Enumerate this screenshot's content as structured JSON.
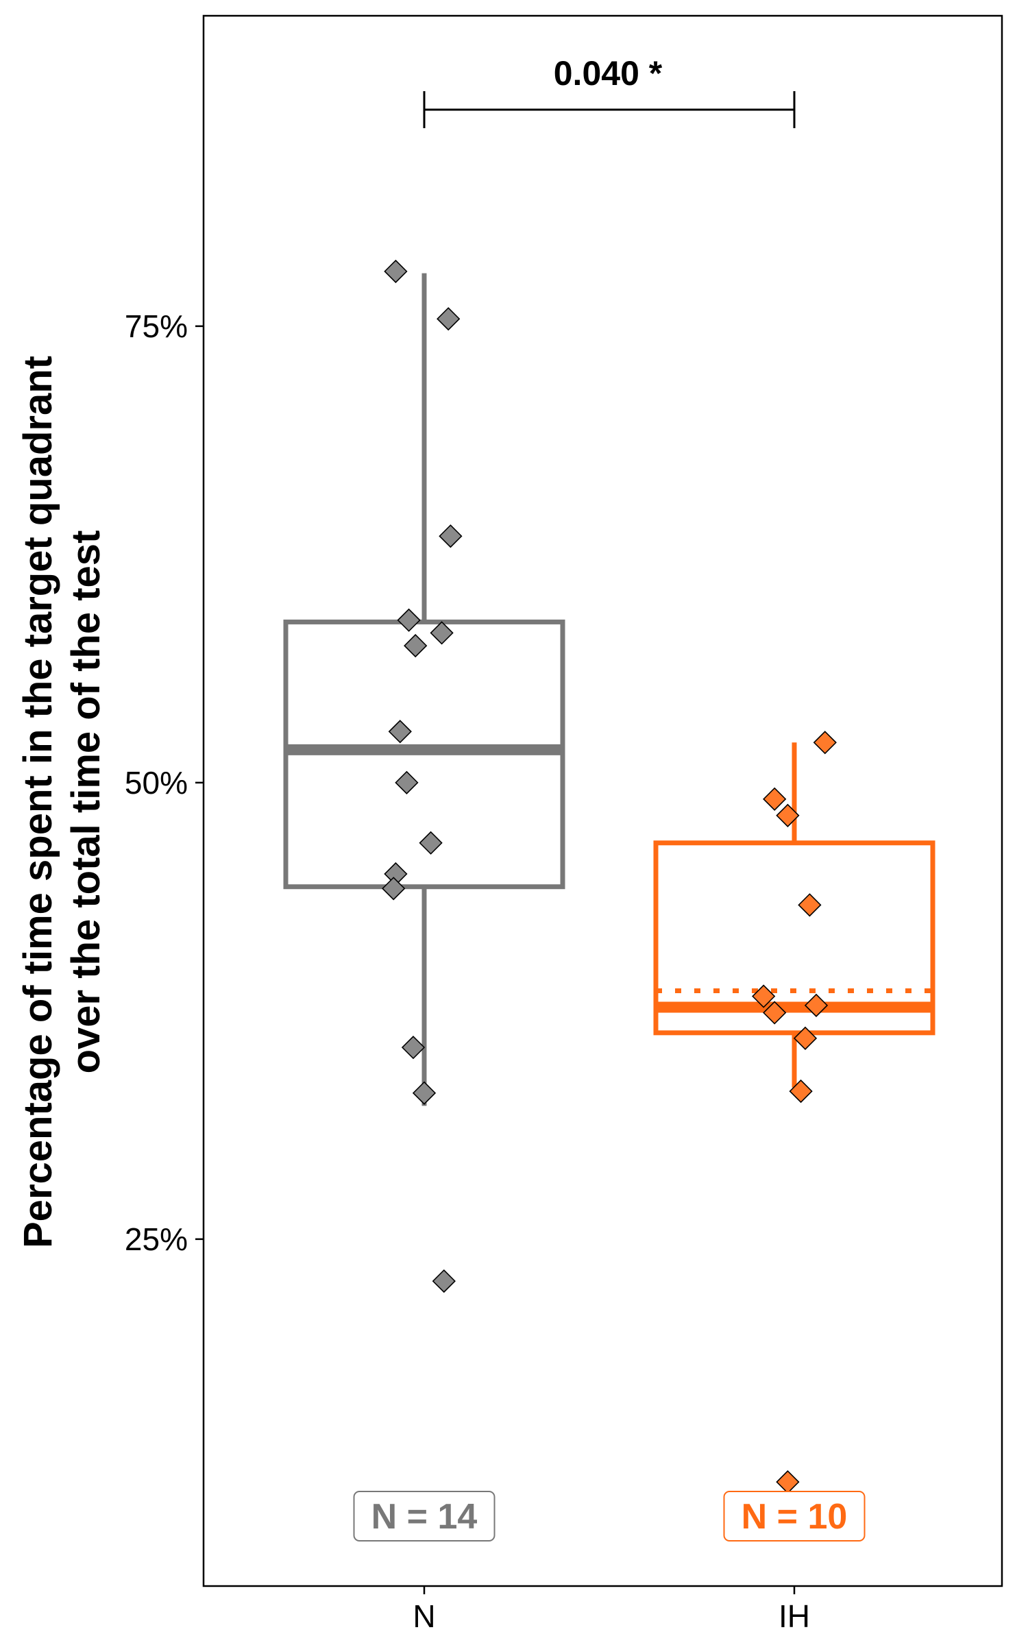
{
  "chart_data": {
    "type": "box",
    "ylabel_lines": [
      "Percentage of time spent in the target quadrant",
      "over the total time of the test"
    ],
    "categories": [
      "N",
      "IH"
    ],
    "y_ticks": [
      {
        "value": 0.25,
        "label": "25%"
      },
      {
        "value": 0.5,
        "label": "50%"
      },
      {
        "value": 0.75,
        "label": "75%"
      }
    ],
    "ylim": [
      0.06,
      0.92
    ],
    "grid": false,
    "groups": [
      {
        "category": "N",
        "color": "#787878",
        "fill": "#8a8a8a",
        "n_label": "N = 14",
        "whisker_low": 0.323,
        "q1": 0.443,
        "median": 0.518,
        "q3": 0.588,
        "whisker_high": 0.779,
        "mean": null,
        "points": [
          {
            "dx": -0.13,
            "y": 0.78
          },
          {
            "dx": 0.11,
            "y": 0.754
          },
          {
            "dx": 0.12,
            "y": 0.635
          },
          {
            "dx": -0.07,
            "y": 0.589
          },
          {
            "dx": 0.08,
            "y": 0.582
          },
          {
            "dx": -0.04,
            "y": 0.575
          },
          {
            "dx": -0.11,
            "y": 0.528
          },
          {
            "dx": -0.08,
            "y": 0.5
          },
          {
            "dx": 0.03,
            "y": 0.467
          },
          {
            "dx": -0.13,
            "y": 0.45
          },
          {
            "dx": -0.14,
            "y": 0.442
          },
          {
            "dx": -0.05,
            "y": 0.355
          },
          {
            "dx": 0.0,
            "y": 0.33
          },
          {
            "dx": 0.09,
            "y": 0.227
          }
        ]
      },
      {
        "category": "IH",
        "color": "#ff6a13",
        "fill": "#ff7a2a",
        "n_label": "N = 10",
        "whisker_low": 0.333,
        "q1": 0.363,
        "median": 0.377,
        "q3": 0.467,
        "whisker_high": 0.522,
        "mean": 0.386,
        "points": [
          {
            "dx": 0.14,
            "y": 0.522
          },
          {
            "dx": -0.09,
            "y": 0.491
          },
          {
            "dx": -0.03,
            "y": 0.482
          },
          {
            "dx": 0.07,
            "y": 0.433
          },
          {
            "dx": -0.14,
            "y": 0.383
          },
          {
            "dx": -0.09,
            "y": 0.374
          },
          {
            "dx": 0.1,
            "y": 0.378
          },
          {
            "dx": 0.05,
            "y": 0.36
          },
          {
            "dx": 0.03,
            "y": 0.331
          },
          {
            "dx": -0.03,
            "y": 0.117
          }
        ]
      }
    ],
    "annotation": {
      "text": "0.040 *",
      "from": "N",
      "to": "IH"
    }
  }
}
